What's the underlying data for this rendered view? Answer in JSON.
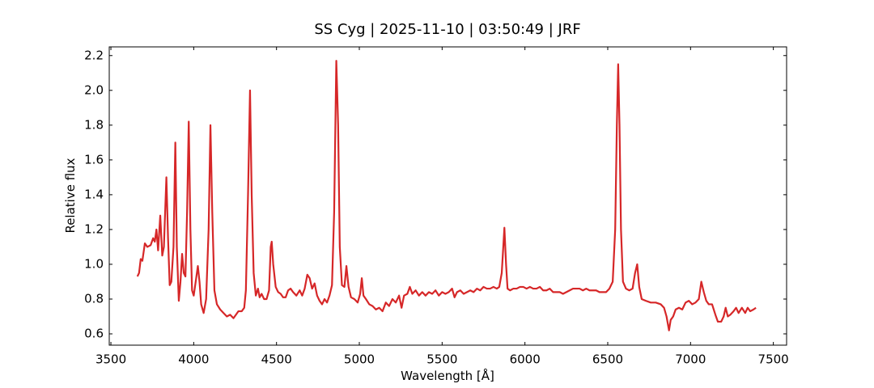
{
  "chart_data": {
    "type": "line",
    "title": "SS Cyg | 2025-11-10 | 03:50:49 | JRF",
    "x_label": "Wavelength [Å]",
    "y_label": "Relative flux",
    "xlim": [
      3490,
      7580
    ],
    "ylim": [
      0.535,
      2.25
    ],
    "xticks": [
      3500,
      4000,
      4500,
      5000,
      5500,
      6000,
      6500,
      7000,
      7500
    ],
    "yticks": [
      0.6,
      0.8,
      {
        "value": 1.0,
        "label": "1.0"
      },
      1.2,
      1.4,
      1.6,
      1.8,
      {
        "value": 2.0,
        "label": "2.0"
      },
      2.2
    ],
    "series": [
      {
        "color": "#d62728",
        "x": [
          3660,
          3670,
          3680,
          3690,
          3705,
          3720,
          3740,
          3755,
          3765,
          3775,
          3785,
          3798,
          3810,
          3820,
          3835,
          3845,
          3855,
          3865,
          3878,
          3889,
          3898,
          3910,
          3920,
          3930,
          3940,
          3950,
          3960,
          3970,
          3980,
          3990,
          4000,
          4012,
          4025,
          4035,
          4045,
          4060,
          4075,
          4090,
          4101,
          4112,
          4125,
          4140,
          4160,
          4180,
          4200,
          4220,
          4240,
          4255,
          4270,
          4290,
          4305,
          4315,
          4328,
          4340,
          4350,
          4362,
          4375,
          4388,
          4398,
          4410,
          4425,
          4440,
          4455,
          4465,
          4471,
          4480,
          4495,
          4510,
          4525,
          4540,
          4555,
          4570,
          4585,
          4600,
          4620,
          4640,
          4655,
          4670,
          4686,
          4700,
          4715,
          4730,
          4745,
          4760,
          4775,
          4790,
          4805,
          4820,
          4835,
          4848,
          4861,
          4872,
          4882,
          4895,
          4910,
          4922,
          4935,
          4950,
          4970,
          4990,
          5005,
          5015,
          5025,
          5040,
          5060,
          5080,
          5100,
          5120,
          5140,
          5160,
          5180,
          5200,
          5220,
          5240,
          5255,
          5270,
          5290,
          5305,
          5320,
          5340,
          5360,
          5380,
          5400,
          5420,
          5440,
          5460,
          5480,
          5500,
          5520,
          5540,
          5560,
          5575,
          5590,
          5610,
          5630,
          5650,
          5670,
          5690,
          5710,
          5730,
          5750,
          5770,
          5790,
          5810,
          5830,
          5845,
          5860,
          5876,
          5886,
          5895,
          5910,
          5930,
          5950,
          5970,
          5990,
          6010,
          6030,
          6050,
          6070,
          6090,
          6110,
          6130,
          6150,
          6170,
          6190,
          6210,
          6230,
          6250,
          6270,
          6290,
          6310,
          6330,
          6350,
          6370,
          6390,
          6410,
          6430,
          6450,
          6470,
          6490,
          6510,
          6530,
          6545,
          6555,
          6563,
          6571,
          6580,
          6592,
          6610,
          6630,
          6650,
          6665,
          6678,
          6690,
          6705,
          6730,
          6760,
          6790,
          6820,
          6840,
          6855,
          6870,
          6880,
          6895,
          6910,
          6930,
          6950,
          6970,
          6990,
          7010,
          7030,
          7050,
          7065,
          7080,
          7095,
          7110,
          7130,
          7150,
          7165,
          7185,
          7200,
          7212,
          7225,
          7240,
          7260,
          7275,
          7290,
          7310,
          7330,
          7345,
          7360,
          7380,
          7395
        ],
        "values": [
          0.93,
          0.95,
          1.03,
          1.02,
          1.12,
          1.1,
          1.11,
          1.15,
          1.13,
          1.2,
          1.08,
          1.28,
          1.05,
          1.1,
          1.5,
          1.15,
          0.88,
          0.9,
          1.1,
          1.7,
          1.1,
          0.79,
          0.9,
          1.06,
          0.95,
          0.93,
          1.3,
          1.82,
          1.2,
          0.85,
          0.82,
          0.9,
          0.99,
          0.9,
          0.77,
          0.72,
          0.8,
          1.2,
          1.8,
          1.3,
          0.85,
          0.77,
          0.74,
          0.72,
          0.7,
          0.71,
          0.69,
          0.71,
          0.73,
          0.73,
          0.75,
          0.85,
          1.4,
          2.0,
          1.4,
          0.95,
          0.82,
          0.86,
          0.81,
          0.83,
          0.8,
          0.8,
          0.85,
          1.1,
          1.13,
          1.0,
          0.87,
          0.84,
          0.83,
          0.81,
          0.81,
          0.85,
          0.86,
          0.84,
          0.82,
          0.85,
          0.82,
          0.86,
          0.94,
          0.92,
          0.86,
          0.89,
          0.82,
          0.79,
          0.77,
          0.8,
          0.78,
          0.82,
          0.88,
          1.3,
          2.17,
          1.8,
          1.1,
          0.88,
          0.87,
          0.99,
          0.87,
          0.81,
          0.8,
          0.78,
          0.83,
          0.92,
          0.82,
          0.8,
          0.77,
          0.76,
          0.74,
          0.75,
          0.73,
          0.78,
          0.76,
          0.8,
          0.78,
          0.82,
          0.75,
          0.82,
          0.83,
          0.87,
          0.83,
          0.85,
          0.82,
          0.84,
          0.82,
          0.84,
          0.83,
          0.85,
          0.82,
          0.84,
          0.83,
          0.84,
          0.86,
          0.81,
          0.84,
          0.85,
          0.83,
          0.84,
          0.85,
          0.84,
          0.86,
          0.85,
          0.87,
          0.86,
          0.86,
          0.87,
          0.86,
          0.87,
          0.95,
          1.21,
          1.0,
          0.86,
          0.85,
          0.86,
          0.86,
          0.87,
          0.87,
          0.86,
          0.87,
          0.86,
          0.86,
          0.87,
          0.85,
          0.85,
          0.86,
          0.84,
          0.84,
          0.84,
          0.83,
          0.84,
          0.85,
          0.86,
          0.86,
          0.86,
          0.85,
          0.86,
          0.85,
          0.85,
          0.85,
          0.84,
          0.84,
          0.84,
          0.86,
          0.9,
          1.2,
          1.8,
          2.15,
          1.8,
          1.2,
          0.9,
          0.86,
          0.85,
          0.86,
          0.95,
          1.0,
          0.87,
          0.8,
          0.79,
          0.78,
          0.78,
          0.77,
          0.75,
          0.7,
          0.62,
          0.68,
          0.7,
          0.74,
          0.75,
          0.74,
          0.78,
          0.79,
          0.77,
          0.78,
          0.8,
          0.9,
          0.84,
          0.79,
          0.77,
          0.77,
          0.71,
          0.67,
          0.67,
          0.7,
          0.75,
          0.7,
          0.71,
          0.73,
          0.75,
          0.72,
          0.75,
          0.72,
          0.75,
          0.73,
          0.74,
          0.75
        ]
      }
    ]
  }
}
